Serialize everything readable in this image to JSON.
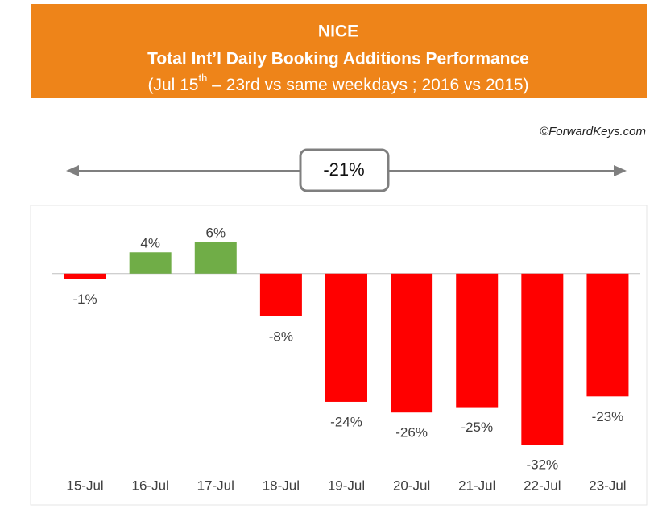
{
  "chart_data": {
    "type": "bar",
    "title": "NICE",
    "subtitle_line": "Total Int’l Daily Booking Additions Performance",
    "subtitle": [
      "(Jul 15",
      "th",
      " – 23rd vs same weekdays ; 2016 vs 2015)"
    ],
    "credit": "©ForwardKeys.com",
    "annotation": "-21%",
    "categories": [
      "15-Jul",
      "16-Jul",
      "17-Jul",
      "18-Jul",
      "19-Jul",
      "20-Jul",
      "21-Jul",
      "22-Jul",
      "23-Jul"
    ],
    "values": [
      -1,
      4,
      6,
      -8,
      -24,
      -26,
      -25,
      -32,
      -23
    ],
    "value_labels": [
      "-1%",
      "4%",
      "6%",
      "-8%",
      "-24%",
      "-26%",
      "-25%",
      "-32%",
      "-23%"
    ],
    "colors": [
      "#ff0000",
      "#70ad47",
      "#70ad47",
      "#ff0000",
      "#ff0000",
      "#ff0000",
      "#ff0000",
      "#ff0000",
      "#ff0000"
    ]
  }
}
